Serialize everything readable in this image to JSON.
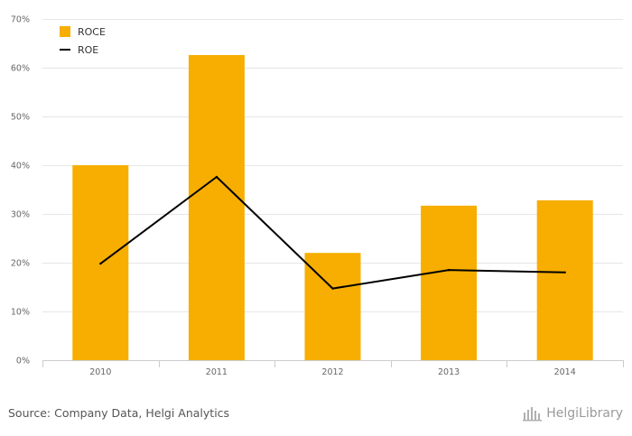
{
  "chart_data": {
    "type": "bar",
    "categories": [
      "2010",
      "2011",
      "2012",
      "2013",
      "2014"
    ],
    "series": [
      {
        "name": "ROCE",
        "type": "bar",
        "color": "#f7ae00",
        "values": [
          40.0,
          62.6,
          22.0,
          31.7,
          32.8
        ]
      },
      {
        "name": "ROE",
        "type": "line",
        "color": "#000000",
        "values": [
          19.8,
          37.6,
          14.7,
          18.5,
          18.0
        ]
      }
    ],
    "ylim": [
      0,
      70
    ],
    "yticks": [
      "0%",
      "10%",
      "20%",
      "30%",
      "40%",
      "50%",
      "60%",
      "70%"
    ],
    "grid": true,
    "legend_position": "top-left"
  },
  "footer": {
    "source": "Source: Company Data, Helgi Analytics",
    "brand": "HelgiLibrary"
  }
}
